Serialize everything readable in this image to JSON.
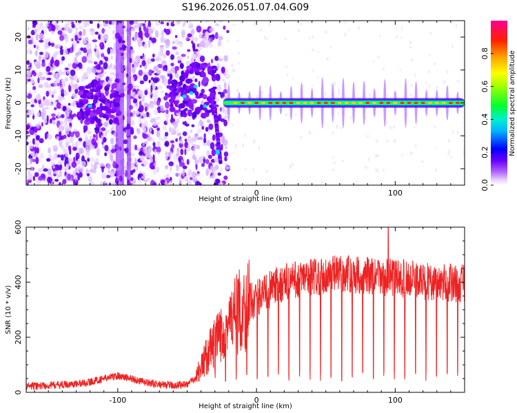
{
  "title": "S196.2026.051.07.04.G09",
  "chart_data": [
    {
      "type": "heatmap",
      "description_free": true,
      "xlabel": "Height of straight line (km)",
      "ylabel": "Frequency (Hz)",
      "xlim": [
        -166,
        150
      ],
      "ylim": [
        -25,
        25
      ],
      "xticks": [
        -100,
        0,
        100
      ],
      "xtick_labels": [
        "-100",
        "0",
        "100"
      ],
      "yticks": [
        -20,
        -10,
        0,
        10,
        20
      ],
      "ytick_labels": [
        "-20",
        "-10",
        "0",
        "10",
        "20"
      ],
      "colorbar": {
        "label": "Normalized spectral amplitude",
        "range": [
          0,
          1
        ],
        "ticks": [
          0.0,
          0.2,
          0.4,
          0.6,
          0.8
        ],
        "tick_labels": [
          "0.0",
          "0.2",
          "0.4",
          "0.6",
          "0.8"
        ],
        "colormap": [
          "#ffffff",
          "#d9b3ff",
          "#8800ff",
          "#0000ff",
          "#00e5ff",
          "#00ff40",
          "#c8ff00",
          "#ffd000",
          "#ff3000",
          "#ff0080"
        ]
      },
      "features": {
        "signal_line_frequency_hz": 0,
        "signal_line_x_start_km": -24,
        "signal_line_x_end_km": 150,
        "noise_region_x_range_km": [
          -166,
          -30
        ]
      }
    },
    {
      "type": "line",
      "xlabel": "Height of straight line (km)",
      "ylabel": "SNR (10 * v/v)",
      "xlim": [
        -166,
        150
      ],
      "ylim": [
        0,
        600
      ],
      "xticks": [
        -100,
        0,
        100
      ],
      "xtick_labels": [
        "-100",
        "0",
        "100"
      ],
      "yticks": [
        0,
        200,
        400,
        600
      ],
      "ytick_labels": [
        "0",
        "200",
        "400",
        "600"
      ],
      "line_color": "#ee2222",
      "series": [
        {
          "name": "SNR",
          "x": [
            -166,
            -150,
            -140,
            -130,
            -120,
            -110,
            -100,
            -90,
            -80,
            -70,
            -60,
            -50,
            -45,
            -40,
            -35,
            -30,
            -25,
            -20,
            -15,
            -10,
            -5,
            0,
            10,
            20,
            30,
            40,
            50,
            60,
            70,
            80,
            90,
            100,
            110,
            120,
            130,
            140,
            150
          ],
          "y": [
            22,
            25,
            28,
            30,
            38,
            50,
            60,
            50,
            35,
            28,
            25,
            30,
            45,
            90,
            140,
            175,
            210,
            245,
            275,
            300,
            325,
            345,
            375,
            400,
            410,
            420,
            425,
            430,
            428,
            425,
            420,
            415,
            410,
            405,
            400,
            398,
            395
          ]
        }
      ]
    }
  ]
}
